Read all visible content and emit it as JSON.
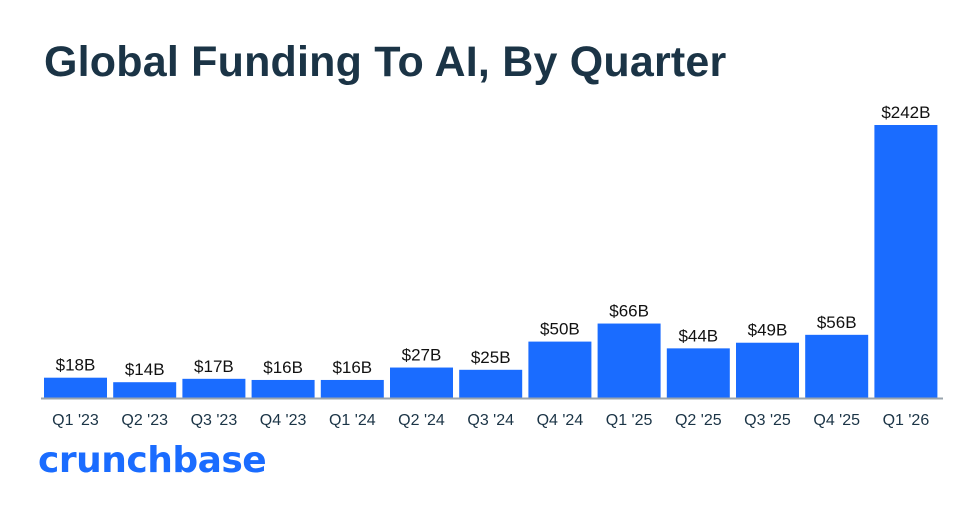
{
  "chart_data": {
    "type": "bar",
    "title": "Global Funding To AI, By Quarter",
    "xlabel": "",
    "ylabel": "",
    "ylim": [
      0,
      250
    ],
    "grid": false,
    "categories": [
      "Q1 '23",
      "Q2 '23",
      "Q3 '23",
      "Q4 '23",
      "Q1 '24",
      "Q2 '24",
      "Q3 '24",
      "Q4 '24",
      "Q1 '25",
      "Q2 '25",
      "Q3 '25",
      "Q4 '25",
      "Q1 '26"
    ],
    "values": [
      18,
      14,
      17,
      16,
      16,
      27,
      25,
      50,
      66,
      44,
      49,
      56,
      242
    ],
    "data_labels": [
      "$18B",
      "$14B",
      "$17B",
      "$16B",
      "$16B",
      "$27B",
      "$25B",
      "$50B",
      "$66B",
      "$44B",
      "$49B",
      "$56B",
      "$242B"
    ],
    "bar_color": "#1a6cff",
    "axis_color": "#9aa4ad",
    "text_color": "#1b3446"
  },
  "brand": {
    "logo_text": "crunchbase"
  }
}
